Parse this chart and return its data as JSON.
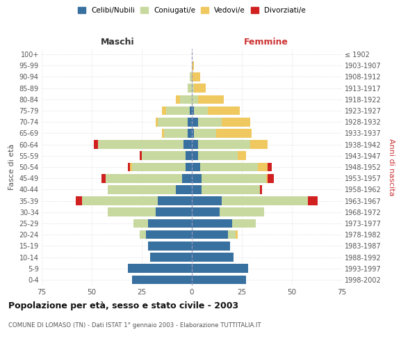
{
  "age_groups": [
    "0-4",
    "5-9",
    "10-14",
    "15-19",
    "20-24",
    "25-29",
    "30-34",
    "35-39",
    "40-44",
    "45-49",
    "50-54",
    "55-59",
    "60-64",
    "65-69",
    "70-74",
    "75-79",
    "80-84",
    "85-89",
    "90-94",
    "95-99",
    "100+"
  ],
  "birth_years": [
    "1998-2002",
    "1993-1997",
    "1988-1992",
    "1983-1987",
    "1978-1982",
    "1973-1977",
    "1968-1972",
    "1963-1967",
    "1958-1962",
    "1953-1957",
    "1948-1952",
    "1943-1947",
    "1938-1942",
    "1933-1937",
    "1928-1932",
    "1923-1927",
    "1918-1922",
    "1913-1917",
    "1908-1912",
    "1903-1907",
    "≤ 1902"
  ],
  "maschi": {
    "celibi": [
      30,
      32,
      21,
      22,
      23,
      22,
      18,
      17,
      8,
      5,
      3,
      3,
      4,
      2,
      2,
      1,
      0,
      0,
      0,
      0,
      0
    ],
    "coniugati": [
      0,
      0,
      0,
      0,
      3,
      7,
      24,
      38,
      34,
      38,
      27,
      22,
      43,
      12,
      15,
      12,
      6,
      2,
      1,
      0,
      0
    ],
    "vedovi": [
      0,
      0,
      0,
      0,
      0,
      0,
      0,
      0,
      0,
      0,
      1,
      0,
      0,
      1,
      1,
      2,
      2,
      0,
      0,
      0,
      0
    ],
    "divorziati": [
      0,
      0,
      0,
      0,
      0,
      0,
      0,
      3,
      0,
      2,
      1,
      1,
      2,
      0,
      0,
      0,
      0,
      0,
      0,
      0,
      0
    ]
  },
  "femmine": {
    "nubili": [
      27,
      28,
      21,
      19,
      18,
      20,
      14,
      15,
      5,
      5,
      4,
      3,
      3,
      1,
      3,
      1,
      0,
      0,
      0,
      0,
      0
    ],
    "coniugate": [
      0,
      0,
      0,
      0,
      4,
      12,
      22,
      43,
      29,
      32,
      29,
      20,
      26,
      11,
      12,
      7,
      3,
      1,
      0,
      0,
      0
    ],
    "vedove": [
      0,
      0,
      0,
      0,
      1,
      0,
      0,
      0,
      0,
      1,
      5,
      4,
      9,
      18,
      14,
      16,
      13,
      6,
      4,
      1,
      0
    ],
    "divorziate": [
      0,
      0,
      0,
      0,
      0,
      0,
      0,
      5,
      1,
      3,
      2,
      0,
      0,
      0,
      0,
      0,
      0,
      0,
      0,
      0,
      0
    ]
  },
  "colors": {
    "celibi": "#3870a0",
    "coniugati": "#c8d9a0",
    "vedovi": "#f0c860",
    "divorziati": "#d02020"
  },
  "xlim": 75,
  "title": "Popolazione per età, sesso e stato civile - 2003",
  "subtitle": "COMUNE DI LOMASO (TN) - Dati ISTAT 1° gennaio 2003 - Elaborazione TUTTITALIA.IT",
  "ylabel_left": "Fasce di età",
  "ylabel_right": "Anni di nascita",
  "xlabel_maschi": "Maschi",
  "xlabel_femmine": "Femmine",
  "legend_labels": [
    "Celibi/Nubili",
    "Coniugati/e",
    "Vedovi/e",
    "Divorziati/e"
  ],
  "background_color": "#ffffff",
  "grid_color": "#cccccc"
}
